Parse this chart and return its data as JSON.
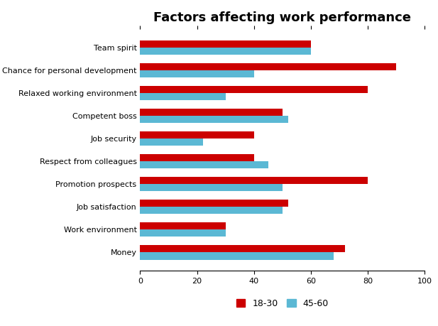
{
  "title": "Factors affecting work performance",
  "categories": [
    "Team spirit",
    "Chance for personal development",
    "Relaxed working environment",
    "Competent boss",
    "Job security",
    "Respect from colleagues",
    "Promotion prospects",
    "Job satisfaction",
    "Work environment",
    "Money"
  ],
  "series": {
    "18-30": [
      60,
      90,
      80,
      50,
      40,
      40,
      80,
      52,
      30,
      72
    ],
    "45-60": [
      60,
      40,
      30,
      52,
      22,
      45,
      50,
      50,
      30,
      68
    ]
  },
  "colors": {
    "18-30": "#CC0000",
    "45-60": "#5BB8D4"
  },
  "xlim": [
    0,
    100
  ],
  "xticks": [
    0,
    20,
    40,
    60,
    80,
    100
  ],
  "background_color": "#FFFFFF",
  "title_fontsize": 13,
  "legend_fontsize": 9,
  "tick_fontsize": 8,
  "bar_height": 0.32
}
